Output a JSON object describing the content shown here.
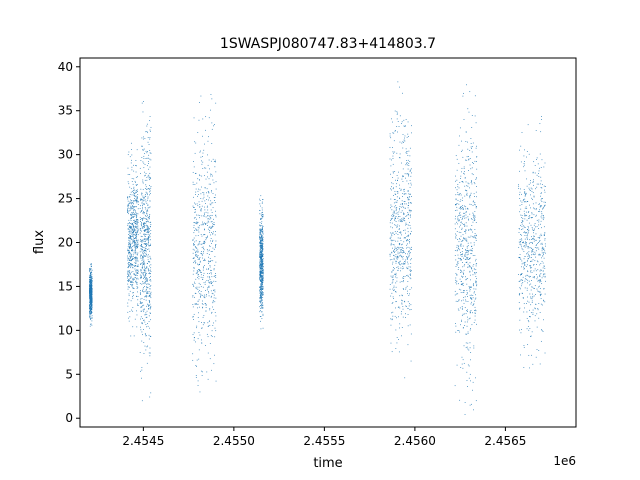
{
  "chart_data": {
    "type": "scatter",
    "title": "1SWASPJ080747.83+414803.7",
    "xlabel": "time",
    "ylabel": "flux",
    "x_offset_label": "1e6",
    "xlim": [
      2454150,
      2456890
    ],
    "ylim": [
      -1,
      41
    ],
    "x_ticks": [
      {
        "value": 2454500,
        "label": "2.4545"
      },
      {
        "value": 2455000,
        "label": "2.4550"
      },
      {
        "value": 2455500,
        "label": "2.4555"
      },
      {
        "value": 2456000,
        "label": "2.4560"
      },
      {
        "value": 2456500,
        "label": "2.4565"
      }
    ],
    "y_ticks": [
      {
        "value": 0,
        "label": "0"
      },
      {
        "value": 5,
        "label": "5"
      },
      {
        "value": 10,
        "label": "10"
      },
      {
        "value": 15,
        "label": "15"
      },
      {
        "value": 20,
        "label": "20"
      },
      {
        "value": 25,
        "label": "25"
      },
      {
        "value": 30,
        "label": "30"
      },
      {
        "value": 35,
        "label": "35"
      },
      {
        "value": 40,
        "label": "40"
      }
    ],
    "grid": false,
    "legend": "none",
    "marker_color": "#1f77b4",
    "observing_seasons": [
      {
        "t_start": 2454200,
        "t_end": 2454215,
        "flux_min": 10.5,
        "flux_max": 18
      },
      {
        "t_start": 2454410,
        "t_end": 2454470,
        "flux_min": 9,
        "flux_max": 32
      },
      {
        "t_start": 2454480,
        "t_end": 2454540,
        "flux_min": 1.5,
        "flux_max": 36.5
      },
      {
        "t_start": 2454770,
        "t_end": 2454900,
        "flux_min": 0.8,
        "flux_max": 38
      },
      {
        "t_start": 2455140,
        "t_end": 2455160,
        "flux_min": 10,
        "flux_max": 25.5
      },
      {
        "t_start": 2455860,
        "t_end": 2455980,
        "flux_min": 4.5,
        "flux_max": 39
      },
      {
        "t_start": 2456220,
        "t_end": 2456340,
        "flux_min": 0.3,
        "flux_max": 39
      },
      {
        "t_start": 2456570,
        "t_end": 2456720,
        "flux_min": 4.8,
        "flux_max": 34.5
      }
    ]
  }
}
